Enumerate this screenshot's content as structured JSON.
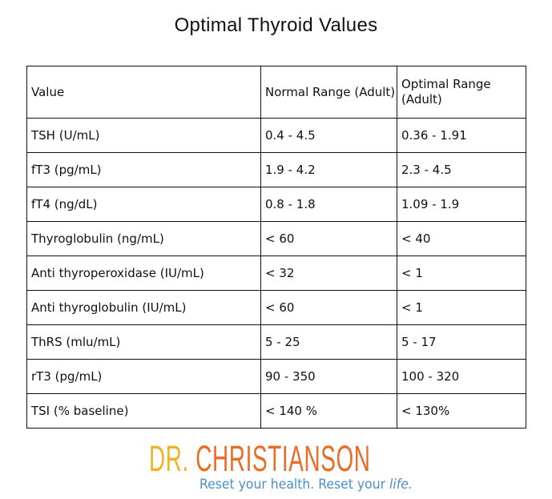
{
  "title": "Optimal Thyroid Values",
  "headers": [
    "Value",
    "Normal Range (Adult)",
    "Optimal Range (Adult)"
  ],
  "rows": [
    [
      "TSH (U/mL)",
      "0.4 - 4.5",
      "0.36 - 1.91"
    ],
    [
      "fT3 (pg/mL)",
      "1.9 - 4.2",
      "2.3 - 4.5"
    ],
    [
      "fT4 (ng/dL)",
      "0.8 - 1.8",
      "1.09 - 1.9"
    ],
    [
      "Thyroglobulin (ng/mL)",
      "< 60",
      "< 40"
    ],
    [
      "Anti thyroperoxidase (IU/mL)",
      "< 32",
      "< 1"
    ],
    [
      "Anti thyroglobulin (IU/mL)",
      "< 60",
      "< 1"
    ],
    [
      "ThRS (mlu/mL)",
      "5 - 25",
      "5 - 17"
    ],
    [
      "rT3 (pg/mL)",
      "90 - 350",
      "100 - 320"
    ],
    [
      "TSI (% baseline)",
      "< 140 %",
      "< 130%"
    ]
  ],
  "logo": {
    "dr": "DR.",
    "name": "CHRISTIANSON",
    "tagline": "Reset your health. Reset your ",
    "tagline_em": "life."
  },
  "colors": {
    "dr": "#f0b323",
    "name": "#ec6b25",
    "tagline": "#4a8fcc"
  }
}
